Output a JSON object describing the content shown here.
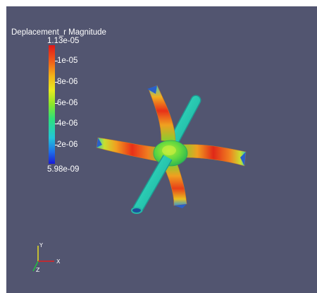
{
  "legend": {
    "title": "Deplacement_r Magnitude",
    "max_label": "1.13e-05",
    "min_label": "5.98e-09",
    "ticks": [
      "1e-05",
      "8e-06",
      "6e-06",
      "4e-06",
      "2e-06"
    ],
    "colormap": [
      "#1a1ad6",
      "#22c6d8",
      "#2ee07a",
      "#e8ec20",
      "#f06018",
      "#e01818"
    ]
  },
  "orientation_axes": {
    "x_label": "X",
    "y_label": "Y",
    "z_label": "Z",
    "x_color": "#e02020",
    "y_color": "#e8e020",
    "z_color": "#20c040"
  },
  "viewport": {
    "background": "#525570"
  }
}
